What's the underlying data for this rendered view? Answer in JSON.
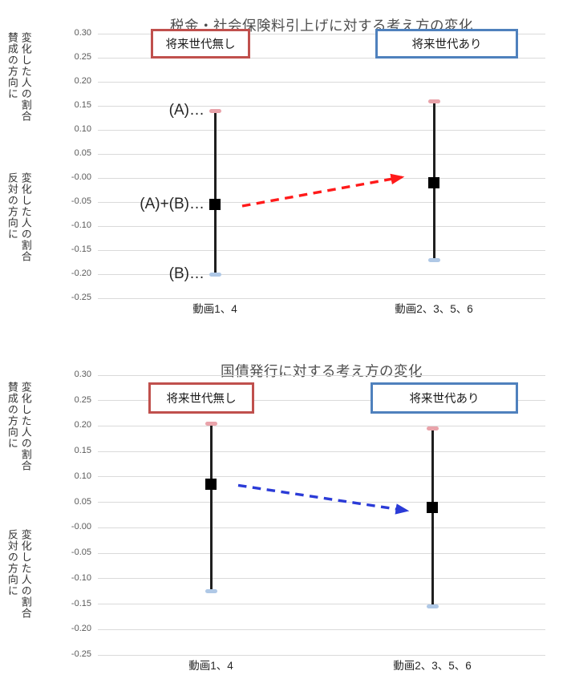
{
  "page": {
    "background": "#FFFFFF"
  },
  "colors": {
    "grid": "#DADADA",
    "tick_text": "#595959",
    "title_text": "#4D4D4D",
    "error_bar_line": "#1F1F1F",
    "cap_high": "#E9A3AA",
    "cap_low": "#AFC8E6",
    "mean_marker": "#000000",
    "legend_border_no_future": "#C0504D",
    "legend_border_with_future": "#4F81BD",
    "arrow_red": "#FF1A1A",
    "arrow_blue": "#2B3BD7"
  },
  "chart_data": [
    {
      "type": "scatter",
      "title": "税金・社会保険料引上げに対する考え方の変化",
      "ylim": [
        -0.25,
        0.3
      ],
      "ytick_step": 0.05,
      "grid": true,
      "legend_position": "top-inside",
      "legend": [
        {
          "label": "将来世代無し",
          "border_color": "#C0504D"
        },
        {
          "label": "将来世代あり",
          "border_color": "#4F81BD"
        }
      ],
      "y_axis_label_positive": [
        "変化した人の割合",
        "賛成の方向に"
      ],
      "y_axis_label_negative": [
        "変化した人の割合",
        "反対の方向に"
      ],
      "categories": [
        "動画1、4",
        "動画2、3、5、6"
      ],
      "series": [
        {
          "name": "将来世代無し",
          "category": "動画1、4",
          "mean": -0.055,
          "ci_high": 0.14,
          "ci_low": -0.2
        },
        {
          "name": "将来世代あり",
          "category": "動画2、3、5、6",
          "mean": -0.01,
          "ci_high": 0.16,
          "ci_low": -0.17
        }
      ],
      "point_labels": [
        {
          "text": "(A)…",
          "series": 0,
          "anchor": "ci_high"
        },
        {
          "text": "(A)+(B)…",
          "series": 0,
          "anchor": "mean"
        },
        {
          "text": "(B)…",
          "series": 0,
          "anchor": "ci_low"
        }
      ],
      "arrow": {
        "color": "#FF1A1A",
        "style": "dashed",
        "from_series": 0,
        "to_series": 1
      }
    },
    {
      "type": "scatter",
      "title": "国債発行に対する考え方の変化",
      "ylim": [
        -0.25,
        0.3
      ],
      "ytick_step": 0.05,
      "grid": true,
      "legend_position": "top-inside",
      "legend": [
        {
          "label": "将来世代無し",
          "border_color": "#C0504D"
        },
        {
          "label": "将来世代あり",
          "border_color": "#4F81BD"
        }
      ],
      "y_axis_label_positive": [
        "変化した人の割合",
        "賛成の方向に"
      ],
      "y_axis_label_negative": [
        "変化した人の割合",
        "反対の方向に"
      ],
      "categories": [
        "動画1、4",
        "動画2、3、5、6"
      ],
      "series": [
        {
          "name": "将来世代無し",
          "category": "動画1、4",
          "mean": 0.085,
          "ci_high": 0.205,
          "ci_low": -0.125
        },
        {
          "name": "将来世代あり",
          "category": "動画2、3、5、6",
          "mean": 0.04,
          "ci_high": 0.195,
          "ci_low": -0.155
        }
      ],
      "point_labels": [],
      "arrow": {
        "color": "#2B3BD7",
        "style": "dashed",
        "from_series": 0,
        "to_series": 1
      }
    }
  ]
}
